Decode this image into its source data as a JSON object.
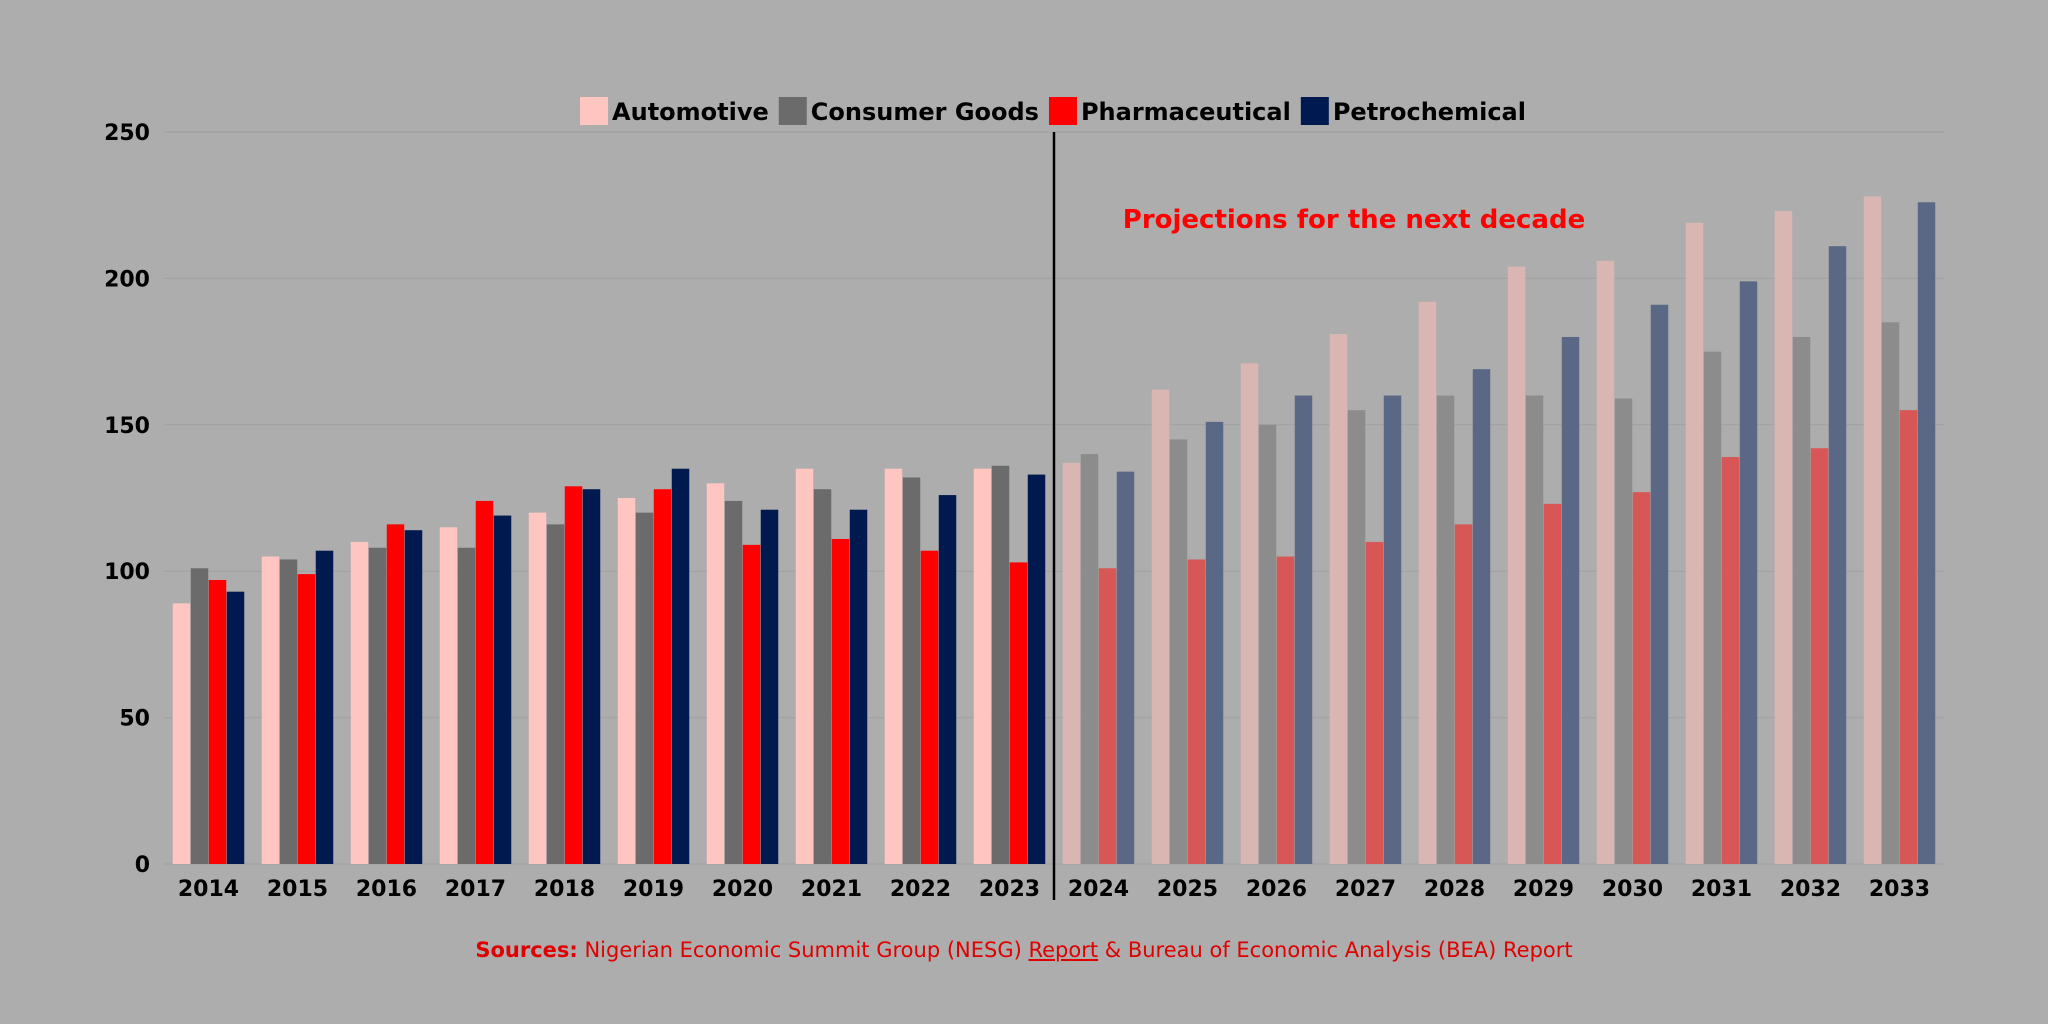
{
  "chart_data": {
    "type": "bar",
    "categories": [
      "2014",
      "2015",
      "2016",
      "2017",
      "2018",
      "2019",
      "2020",
      "2021",
      "2022",
      "2023",
      "2024",
      "2025",
      "2026",
      "2027",
      "2028",
      "2029",
      "2030",
      "2031",
      "2032",
      "2033"
    ],
    "projected_from": "2024",
    "series": [
      {
        "name": "Automotive",
        "color": "#ffc6c1",
        "projected_color": "#d9b6b2",
        "values": [
          89,
          105,
          110,
          115,
          120,
          125,
          130,
          135,
          135,
          135,
          137,
          162,
          171,
          181,
          192,
          204,
          206,
          219,
          223,
          228
        ]
      },
      {
        "name": "Consumer Goods",
        "color": "#6b6b6b",
        "projected_color": "#8c8c8c",
        "values": [
          101,
          104,
          108,
          108,
          116,
          120,
          124,
          128,
          132,
          136,
          140,
          145,
          150,
          155,
          160,
          160,
          159,
          175,
          180,
          185
        ]
      },
      {
        "name": "Pharmaceutical",
        "color": "#ff0000",
        "projected_color": "#d75757",
        "values": [
          97,
          99,
          116,
          124,
          129,
          128,
          109,
          111,
          107,
          103,
          101,
          104,
          105,
          110,
          116,
          123,
          127,
          139,
          142,
          155
        ]
      },
      {
        "name": "Petrochemical",
        "color": "#001a4f",
        "projected_color": "#5a6885",
        "values": [
          93,
          107,
          114,
          119,
          128,
          135,
          121,
          121,
          126,
          133,
          134,
          151,
          160,
          160,
          169,
          180,
          191,
          199,
          211,
          226
        ]
      }
    ],
    "y_ticks": [
      "0",
      "50",
      "100",
      "150",
      "200",
      "250"
    ],
    "ylim": [
      0,
      250
    ],
    "annotation": "Projections for the next decade",
    "annotation_color": "#ff0000",
    "legend_position": "top-center",
    "grid": true
  },
  "sources": {
    "label": "Sources:",
    "part1": " Nigerian Economic Summit Group (NESG) ",
    "link": "Report",
    "part2": " & Bureau of Economic Analysis (BEA) Report"
  }
}
